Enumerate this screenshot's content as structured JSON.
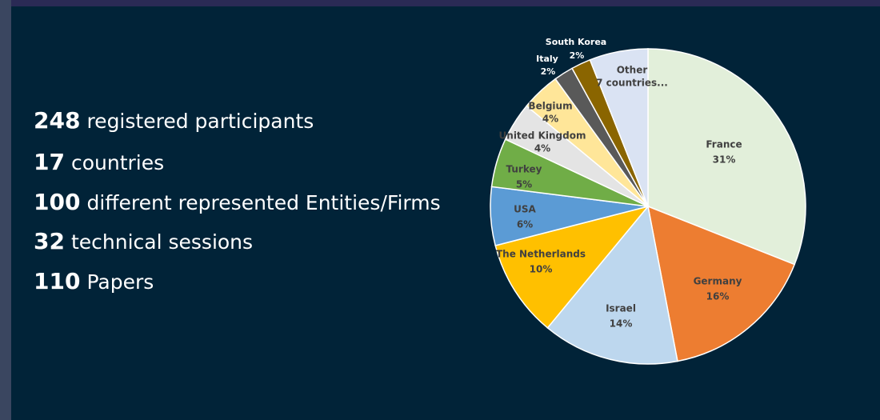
{
  "stats": [
    {
      "number": "248",
      "text": "registered participants"
    },
    {
      "number": "17",
      "text": "countries"
    },
    {
      "number": "100",
      "text": "different represented Entities/Firms"
    },
    {
      "number": "32",
      "text": "technical sessions"
    },
    {
      "number": "110",
      "text": "Papers"
    }
  ],
  "chart_data": {
    "type": "pie",
    "categories": [
      "France",
      "Germany",
      "Israel",
      "The Netherlands",
      "USA",
      "Turkey",
      "United Kingdom",
      "Belgium",
      "Italy",
      "South Korea",
      "Other"
    ],
    "values": [
      31,
      16,
      14,
      10,
      6,
      5,
      4,
      4,
      2,
      2,
      6
    ],
    "value_labels": [
      "31%",
      "16%",
      "14%",
      "10%",
      "6%",
      "5%",
      "4%",
      "4%",
      "2%",
      "2%",
      null
    ],
    "colors": [
      "#e2efda",
      "#ed7d31",
      "#bdd7ee",
      "#ffc000",
      "#5b9bd5",
      "#70ad47",
      "#e4e4e4",
      "#ffe699",
      "#595959",
      "#8a6500",
      "#dae3f3"
    ],
    "annotations": [
      "7 countries..."
    ]
  }
}
